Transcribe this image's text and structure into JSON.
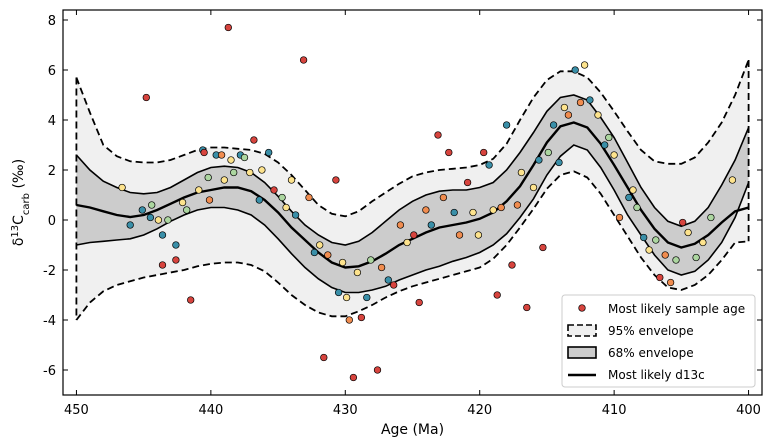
{
  "chart_data": {
    "type": "scatter",
    "xlabel": "Age (Ma)",
    "ylabel": "δ13Ccarb (‰)",
    "ylabel_parts": {
      "delta": "δ",
      "sup": "13",
      "base": "C",
      "sub": "carb",
      "unit": " (‰)"
    },
    "xlim": [
      451,
      399
    ],
    "ylim": [
      -7,
      8.4
    ],
    "x_ticks": [
      450,
      440,
      430,
      420,
      410,
      400
    ],
    "y_ticks": [
      -6,
      -4,
      -2,
      0,
      2,
      4,
      6,
      8
    ],
    "grid": false,
    "legend_position": "lower-right",
    "legend": [
      {
        "key": "sample",
        "label": "Most likely sample age"
      },
      {
        "key": "env95",
        "label": "95% envelope"
      },
      {
        "key": "env68",
        "label": "68% envelope"
      },
      {
        "key": "median",
        "label": "Most likely d13c"
      }
    ],
    "colors": {
      "outer_fill": "#f0f0f0",
      "inner_fill": "#cccccc",
      "line": "#000000",
      "palette": [
        "#d7443e",
        "#f08c4f",
        "#fde38d",
        "#acd6a0",
        "#3a8fa8"
      ]
    },
    "curves": {
      "x": [
        450,
        449,
        448,
        447,
        446,
        445,
        444,
        443,
        442,
        441,
        440,
        439,
        438,
        437,
        436,
        435,
        434,
        433,
        432,
        431,
        430,
        429,
        428,
        427,
        426,
        425,
        424,
        423,
        422,
        421,
        420,
        419,
        418,
        417,
        416,
        415,
        414,
        413,
        412,
        411,
        410,
        409,
        408,
        407,
        406,
        405,
        404,
        403,
        402,
        401,
        400
      ],
      "median": [
        0.6,
        0.5,
        0.35,
        0.2,
        0.12,
        0.2,
        0.4,
        0.65,
        0.9,
        1.1,
        1.2,
        1.3,
        1.3,
        1.15,
        0.8,
        0.3,
        -0.3,
        -0.8,
        -1.3,
        -1.7,
        -1.9,
        -1.85,
        -1.65,
        -1.35,
        -1.0,
        -0.75,
        -0.5,
        -0.3,
        -0.2,
        -0.1,
        0.05,
        0.3,
        0.75,
        1.35,
        2.2,
        3.1,
        3.75,
        3.9,
        3.7,
        3.05,
        2.2,
        1.3,
        0.4,
        -0.35,
        -0.9,
        -1.1,
        -0.95,
        -0.6,
        -0.1,
        0.35,
        0.5
      ],
      "upper68": [
        2.6,
        2.0,
        1.55,
        1.3,
        1.1,
        1.05,
        1.1,
        1.3,
        1.6,
        1.9,
        2.1,
        2.15,
        2.1,
        1.9,
        1.5,
        0.95,
        0.35,
        -0.2,
        -0.6,
        -0.9,
        -1.0,
        -0.85,
        -0.5,
        -0.05,
        0.4,
        0.75,
        1.0,
        1.15,
        1.2,
        1.2,
        1.3,
        1.5,
        2.0,
        2.7,
        3.5,
        4.35,
        4.9,
        5.0,
        4.8,
        4.1,
        3.3,
        2.3,
        1.3,
        0.5,
        -0.05,
        -0.25,
        -0.05,
        0.5,
        1.4,
        2.4,
        3.7
      ],
      "lower68": [
        -1.0,
        -0.9,
        -0.85,
        -0.8,
        -0.75,
        -0.6,
        -0.35,
        -0.05,
        0.2,
        0.4,
        0.5,
        0.5,
        0.4,
        0.2,
        -0.2,
        -0.75,
        -1.35,
        -1.9,
        -2.35,
        -2.7,
        -2.9,
        -2.9,
        -2.8,
        -2.65,
        -2.4,
        -2.2,
        -2.0,
        -1.85,
        -1.65,
        -1.5,
        -1.3,
        -1.0,
        -0.55,
        0.1,
        0.85,
        1.8,
        2.55,
        3.0,
        2.8,
        2.1,
        1.2,
        0.2,
        -0.6,
        -1.4,
        -2.0,
        -2.2,
        -2.05,
        -1.6,
        -0.9,
        0.1,
        1.5
      ],
      "upper95": [
        5.7,
        4.3,
        3.0,
        2.55,
        2.35,
        2.3,
        2.3,
        2.4,
        2.6,
        2.8,
        2.9,
        2.9,
        2.85,
        2.8,
        2.65,
        2.3,
        1.8,
        1.2,
        0.6,
        0.25,
        0.15,
        0.35,
        0.75,
        1.1,
        1.45,
        1.75,
        1.9,
        2.0,
        2.05,
        2.1,
        2.2,
        2.45,
        3.05,
        4.0,
        4.9,
        5.6,
        5.95,
        5.95,
        5.7,
        5.1,
        4.35,
        3.55,
        2.8,
        2.35,
        2.25,
        2.25,
        2.5,
        3.1,
        3.9,
        5.0,
        6.4
      ],
      "lower95": [
        -4.0,
        -3.3,
        -2.85,
        -2.6,
        -2.45,
        -2.3,
        -2.2,
        -2.1,
        -2.0,
        -1.85,
        -1.75,
        -1.7,
        -1.7,
        -1.8,
        -2.05,
        -2.5,
        -3.0,
        -3.4,
        -3.7,
        -3.85,
        -3.85,
        -3.65,
        -3.4,
        -3.1,
        -2.85,
        -2.65,
        -2.5,
        -2.35,
        -2.2,
        -2.05,
        -1.9,
        -1.55,
        -1.0,
        -0.3,
        0.45,
        1.25,
        1.8,
        1.95,
        1.7,
        1.05,
        0.2,
        -0.65,
        -1.5,
        -2.2,
        -2.7,
        -2.8,
        -2.6,
        -2.2,
        -1.6,
        -0.9,
        -0.85
      ]
    },
    "points": [
      {
        "x": 446.6,
        "y": 1.3,
        "c": 2
      },
      {
        "x": 446.0,
        "y": -0.2,
        "c": 4
      },
      {
        "x": 445.1,
        "y": 0.4,
        "c": 4
      },
      {
        "x": 444.8,
        "y": 4.9,
        "c": 0
      },
      {
        "x": 444.5,
        "y": 0.1,
        "c": 4
      },
      {
        "x": 444.4,
        "y": 0.6,
        "c": 3
      },
      {
        "x": 443.9,
        "y": 0.0,
        "c": 2
      },
      {
        "x": 443.6,
        "y": -0.6,
        "c": 4
      },
      {
        "x": 443.6,
        "y": -1.8,
        "c": 0
      },
      {
        "x": 443.2,
        "y": 0.0,
        "c": 3
      },
      {
        "x": 442.6,
        "y": -1.6,
        "c": 0
      },
      {
        "x": 442.6,
        "y": -1.0,
        "c": 4
      },
      {
        "x": 442.1,
        "y": 0.7,
        "c": 2
      },
      {
        "x": 441.8,
        "y": 0.4,
        "c": 3
      },
      {
        "x": 441.5,
        "y": -3.2,
        "c": 0
      },
      {
        "x": 440.9,
        "y": 1.2,
        "c": 2
      },
      {
        "x": 440.6,
        "y": 2.8,
        "c": 4
      },
      {
        "x": 440.5,
        "y": 2.7,
        "c": 0
      },
      {
        "x": 440.2,
        "y": 1.7,
        "c": 3
      },
      {
        "x": 440.1,
        "y": 0.8,
        "c": 1
      },
      {
        "x": 439.6,
        "y": 2.6,
        "c": 4
      },
      {
        "x": 439.2,
        "y": 2.6,
        "c": 1
      },
      {
        "x": 439.0,
        "y": 1.6,
        "c": 2
      },
      {
        "x": 438.7,
        "y": 7.7,
        "c": 0
      },
      {
        "x": 438.5,
        "y": 2.4,
        "c": 2
      },
      {
        "x": 438.3,
        "y": 1.9,
        "c": 3
      },
      {
        "x": 437.8,
        "y": 2.6,
        "c": 4
      },
      {
        "x": 437.5,
        "y": 2.5,
        "c": 3
      },
      {
        "x": 437.1,
        "y": 1.9,
        "c": 2
      },
      {
        "x": 436.8,
        "y": 3.2,
        "c": 0
      },
      {
        "x": 436.4,
        "y": 0.8,
        "c": 4
      },
      {
        "x": 436.2,
        "y": 2.0,
        "c": 2
      },
      {
        "x": 435.7,
        "y": 2.7,
        "c": 4
      },
      {
        "x": 435.3,
        "y": 1.2,
        "c": 0
      },
      {
        "x": 434.7,
        "y": 0.9,
        "c": 3
      },
      {
        "x": 434.4,
        "y": 0.5,
        "c": 2
      },
      {
        "x": 434.0,
        "y": 1.6,
        "c": 2
      },
      {
        "x": 433.7,
        "y": 0.2,
        "c": 4
      },
      {
        "x": 433.1,
        "y": 6.4,
        "c": 0
      },
      {
        "x": 432.7,
        "y": 0.9,
        "c": 1
      },
      {
        "x": 432.3,
        "y": -1.3,
        "c": 4
      },
      {
        "x": 431.9,
        "y": -1.0,
        "c": 2
      },
      {
        "x": 431.6,
        "y": -5.5,
        "c": 0
      },
      {
        "x": 431.3,
        "y": -1.4,
        "c": 1
      },
      {
        "x": 430.7,
        "y": 1.6,
        "c": 0
      },
      {
        "x": 430.5,
        "y": -2.9,
        "c": 4
      },
      {
        "x": 430.2,
        "y": -1.7,
        "c": 2
      },
      {
        "x": 429.9,
        "y": -3.1,
        "c": 2
      },
      {
        "x": 429.7,
        "y": -4.0,
        "c": 1
      },
      {
        "x": 429.4,
        "y": -6.3,
        "c": 0
      },
      {
        "x": 429.1,
        "y": -2.1,
        "c": 2
      },
      {
        "x": 428.8,
        "y": -3.9,
        "c": 0
      },
      {
        "x": 428.4,
        "y": -3.1,
        "c": 4
      },
      {
        "x": 428.1,
        "y": -1.6,
        "c": 3
      },
      {
        "x": 427.6,
        "y": -6.0,
        "c": 0
      },
      {
        "x": 427.3,
        "y": -1.9,
        "c": 1
      },
      {
        "x": 426.8,
        "y": -2.4,
        "c": 4
      },
      {
        "x": 426.4,
        "y": -2.6,
        "c": 0
      },
      {
        "x": 425.9,
        "y": -0.2,
        "c": 1
      },
      {
        "x": 425.4,
        "y": -0.9,
        "c": 2
      },
      {
        "x": 424.9,
        "y": -0.6,
        "c": 0
      },
      {
        "x": 424.5,
        "y": -3.3,
        "c": 0
      },
      {
        "x": 424.0,
        "y": 0.4,
        "c": 1
      },
      {
        "x": 423.6,
        "y": -0.2,
        "c": 4
      },
      {
        "x": 423.1,
        "y": 3.4,
        "c": 0
      },
      {
        "x": 422.7,
        "y": 0.9,
        "c": 1
      },
      {
        "x": 422.3,
        "y": 2.7,
        "c": 0
      },
      {
        "x": 421.9,
        "y": 0.3,
        "c": 4
      },
      {
        "x": 421.5,
        "y": -0.6,
        "c": 1
      },
      {
        "x": 420.9,
        "y": 1.5,
        "c": 0
      },
      {
        "x": 420.5,
        "y": 0.3,
        "c": 2
      },
      {
        "x": 420.1,
        "y": -0.6,
        "c": 2
      },
      {
        "x": 419.7,
        "y": 2.7,
        "c": 0
      },
      {
        "x": 419.3,
        "y": 2.2,
        "c": 4
      },
      {
        "x": 419.0,
        "y": 0.4,
        "c": 2
      },
      {
        "x": 418.7,
        "y": -3.0,
        "c": 0
      },
      {
        "x": 418.4,
        "y": 0.5,
        "c": 1
      },
      {
        "x": 418.0,
        "y": 3.8,
        "c": 4
      },
      {
        "x": 417.6,
        "y": -1.8,
        "c": 0
      },
      {
        "x": 417.2,
        "y": 0.6,
        "c": 1
      },
      {
        "x": 416.9,
        "y": 1.9,
        "c": 2
      },
      {
        "x": 416.5,
        "y": -3.5,
        "c": 0
      },
      {
        "x": 416.0,
        "y": 1.3,
        "c": 2
      },
      {
        "x": 415.6,
        "y": 2.4,
        "c": 4
      },
      {
        "x": 415.3,
        "y": -1.1,
        "c": 0
      },
      {
        "x": 414.9,
        "y": 2.7,
        "c": 3
      },
      {
        "x": 414.5,
        "y": 3.8,
        "c": 4
      },
      {
        "x": 414.1,
        "y": 2.3,
        "c": 4
      },
      {
        "x": 413.7,
        "y": 4.5,
        "c": 2
      },
      {
        "x": 413.4,
        "y": 4.2,
        "c": 1
      },
      {
        "x": 412.9,
        "y": 6.0,
        "c": 4
      },
      {
        "x": 412.5,
        "y": 4.7,
        "c": 1
      },
      {
        "x": 412.2,
        "y": 6.2,
        "c": 2
      },
      {
        "x": 411.8,
        "y": 4.8,
        "c": 4
      },
      {
        "x": 411.2,
        "y": 4.2,
        "c": 2
      },
      {
        "x": 410.7,
        "y": 3.0,
        "c": 4
      },
      {
        "x": 410.4,
        "y": 3.3,
        "c": 3
      },
      {
        "x": 410.0,
        "y": 2.6,
        "c": 2
      },
      {
        "x": 409.6,
        "y": 0.1,
        "c": 1
      },
      {
        "x": 408.9,
        "y": 0.9,
        "c": 4
      },
      {
        "x": 408.6,
        "y": 1.2,
        "c": 2
      },
      {
        "x": 408.3,
        "y": 0.5,
        "c": 3
      },
      {
        "x": 407.8,
        "y": -0.7,
        "c": 4
      },
      {
        "x": 407.4,
        "y": -1.2,
        "c": 2
      },
      {
        "x": 406.9,
        "y": -0.8,
        "c": 3
      },
      {
        "x": 406.6,
        "y": -2.3,
        "c": 0
      },
      {
        "x": 406.2,
        "y": -1.4,
        "c": 1
      },
      {
        "x": 405.8,
        "y": -2.5,
        "c": 1
      },
      {
        "x": 405.4,
        "y": -1.6,
        "c": 3
      },
      {
        "x": 404.9,
        "y": -0.1,
        "c": 0
      },
      {
        "x": 404.5,
        "y": -0.5,
        "c": 2
      },
      {
        "x": 403.9,
        "y": -1.5,
        "c": 3
      },
      {
        "x": 403.4,
        "y": -0.9,
        "c": 2
      },
      {
        "x": 402.8,
        "y": 0.1,
        "c": 3
      },
      {
        "x": 401.2,
        "y": 1.6,
        "c": 2
      }
    ]
  }
}
